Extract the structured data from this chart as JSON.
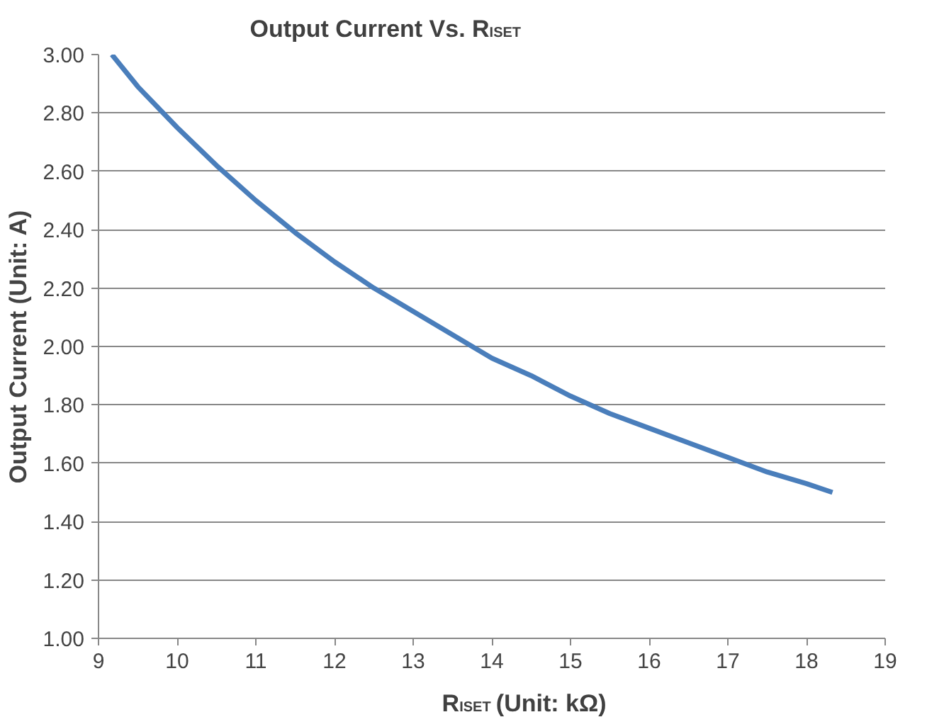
{
  "chart_data": {
    "type": "line",
    "title": "Output Current Vs. R$_{ISET}$",
    "xlabel": "R$_{ISET}$ (Unit: kΩ)",
    "ylabel": "Output Current (Unit: A)",
    "x": [
      9.17,
      9.5,
      10,
      10.5,
      11,
      11.5,
      12,
      12.5,
      13,
      13.5,
      14,
      14.5,
      15,
      15.5,
      16,
      16.5,
      17,
      17.5,
      18,
      18.33
    ],
    "series": [
      {
        "color": "#4a7ebb",
        "values": [
          3.0,
          2.89,
          2.75,
          2.62,
          2.5,
          2.39,
          2.29,
          2.2,
          2.12,
          2.04,
          1.96,
          1.9,
          1.83,
          1.77,
          1.72,
          1.67,
          1.62,
          1.57,
          1.53,
          1.5
        ]
      }
    ],
    "xlim": [
      9,
      19
    ],
    "xticks": [
      9,
      10,
      11,
      12,
      13,
      14,
      15,
      16,
      17,
      18,
      19
    ],
    "ylim": [
      1.0,
      3.0
    ],
    "yticks": [
      {
        "value": 1.0,
        "label": "1.00"
      },
      {
        "value": 1.2,
        "label": "1.20"
      },
      {
        "value": 1.4,
        "label": "1.40"
      },
      {
        "value": 1.6,
        "label": "1.60"
      },
      {
        "value": 1.8,
        "label": "1.80"
      },
      {
        "value": 2.0,
        "label": "2.00"
      },
      {
        "value": 2.2,
        "label": "2.20"
      },
      {
        "value": 2.4,
        "label": "2.40"
      },
      {
        "value": 2.6,
        "label": "2.60"
      },
      {
        "value": 2.8,
        "label": "2.80"
      },
      {
        "value": 3.0,
        "label": "3.00"
      }
    ],
    "grid": "y",
    "marker": "none",
    "line_style": "solid"
  }
}
